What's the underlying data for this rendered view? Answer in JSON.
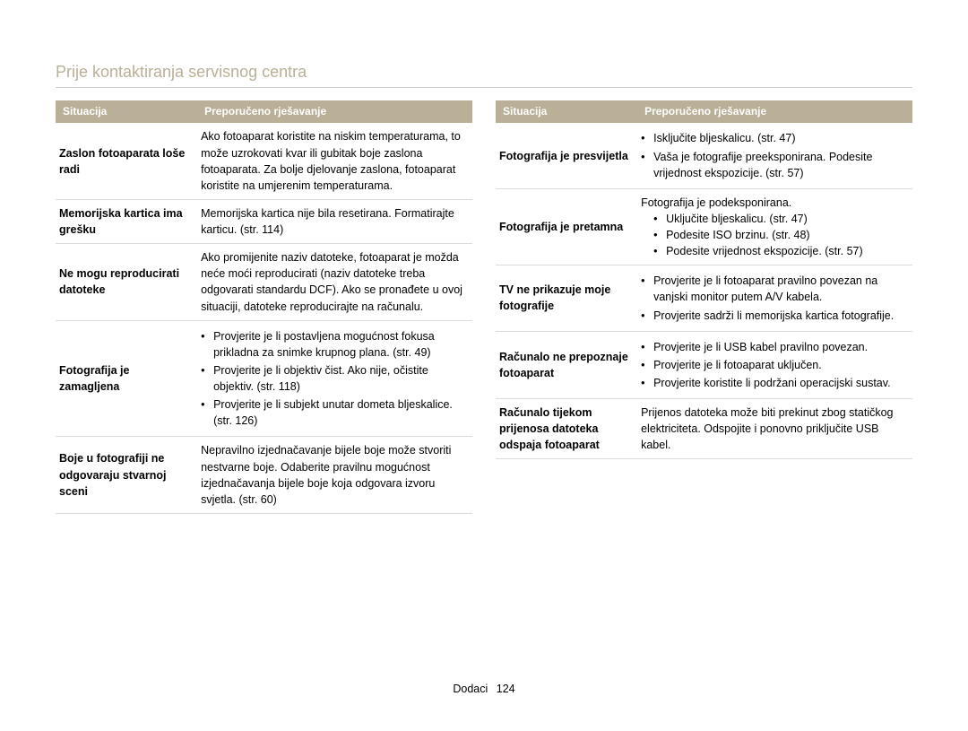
{
  "page_title": "Prije kontaktiranja servisnog centra",
  "colors": {
    "title_color": "#b9b097",
    "header_bg": "#b9b097",
    "header_text": "#ffffff",
    "row_border": "#dcdcdc",
    "text": "#000000",
    "background": "#ffffff"
  },
  "headers": {
    "situation": "Situacija",
    "solution": "Preporučeno rješavanje"
  },
  "left_table": {
    "rows": [
      {
        "label": "Zaslon fotoaparata loše radi",
        "text": "Ako fotoaparat koristite na niskim temperaturama, to može uzrokovati kvar ili gubitak boje zaslona fotoaparata.\nZa bolje djelovanje zaslona, fotoaparat koristite na umjerenim temperaturama."
      },
      {
        "label": "Memorijska kartica ima grešku",
        "text": "Memorijska kartica nije bila resetirana. Formatirajte karticu. (str. 114)"
      },
      {
        "label": "Ne mogu reproducirati datoteke",
        "text": "Ako promijenite naziv datoteke, fotoaparat je možda neće moći reproducirati (naziv datoteke treba odgovarati standardu DCF). Ako se pronađete u ovoj situaciji, datoteke reproducirajte na računalu."
      },
      {
        "label": "Fotografija je zamagljena",
        "bullets": [
          "Provjerite je li postavljena mogućnost fokusa prikladna za snimke krupnog plana. (str. 49)",
          "Provjerite je li objektiv čist. Ako nije, očistite objektiv. (str. 118)",
          "Provjerite je li subjekt unutar dometa bljeskalice. (str. 126)"
        ]
      },
      {
        "label": "Boje u fotografiji ne odgovaraju stvarnoj sceni",
        "text": "Nepravilno izjednačavanje bijele boje može stvoriti nestvarne boje. Odaberite pravilnu mogućnost izjednačavanja bijele boje koja odgovara izvoru svjetla. (str. 60)"
      }
    ]
  },
  "right_table": {
    "rows": [
      {
        "label": "Fotografija je presvijetla",
        "bullets": [
          "Isključite bljeskalicu. (str. 47)",
          "Vaša je fotografije preeksponirana. Podesite vrijednost ekspozicije. (str. 57)"
        ]
      },
      {
        "label": "Fotografija je pretamna",
        "intro": "Fotografija je podeksponirana.",
        "sub_bullets": [
          "Uključite bljeskalicu. (str. 47)",
          "Podesite ISO brzinu. (str. 48)",
          "Podesite vrijednost ekspozicije. (str. 57)"
        ]
      },
      {
        "label": "TV ne prikazuje moje fotografije",
        "bullets": [
          "Provjerite je li fotoaparat pravilno povezan na vanjski monitor putem A/V kabela.",
          "Provjerite sadrži li memorijska kartica fotografije."
        ]
      },
      {
        "label": "Računalo ne prepoznaje fotoaparat",
        "bullets": [
          "Provjerite je li USB kabel pravilno povezan.",
          "Provjerite je li fotoaparat uključen.",
          "Provjerite koristite li podržani operacijski sustav."
        ]
      },
      {
        "label": "Računalo tijekom prijenosa datoteka odspaja fotoaparat",
        "text": "Prijenos datoteka može biti prekinut zbog statičkog elektriciteta. Odspojite i ponovno priključite USB kabel."
      }
    ]
  },
  "footer": {
    "section": "Dodaci",
    "page": "124"
  }
}
